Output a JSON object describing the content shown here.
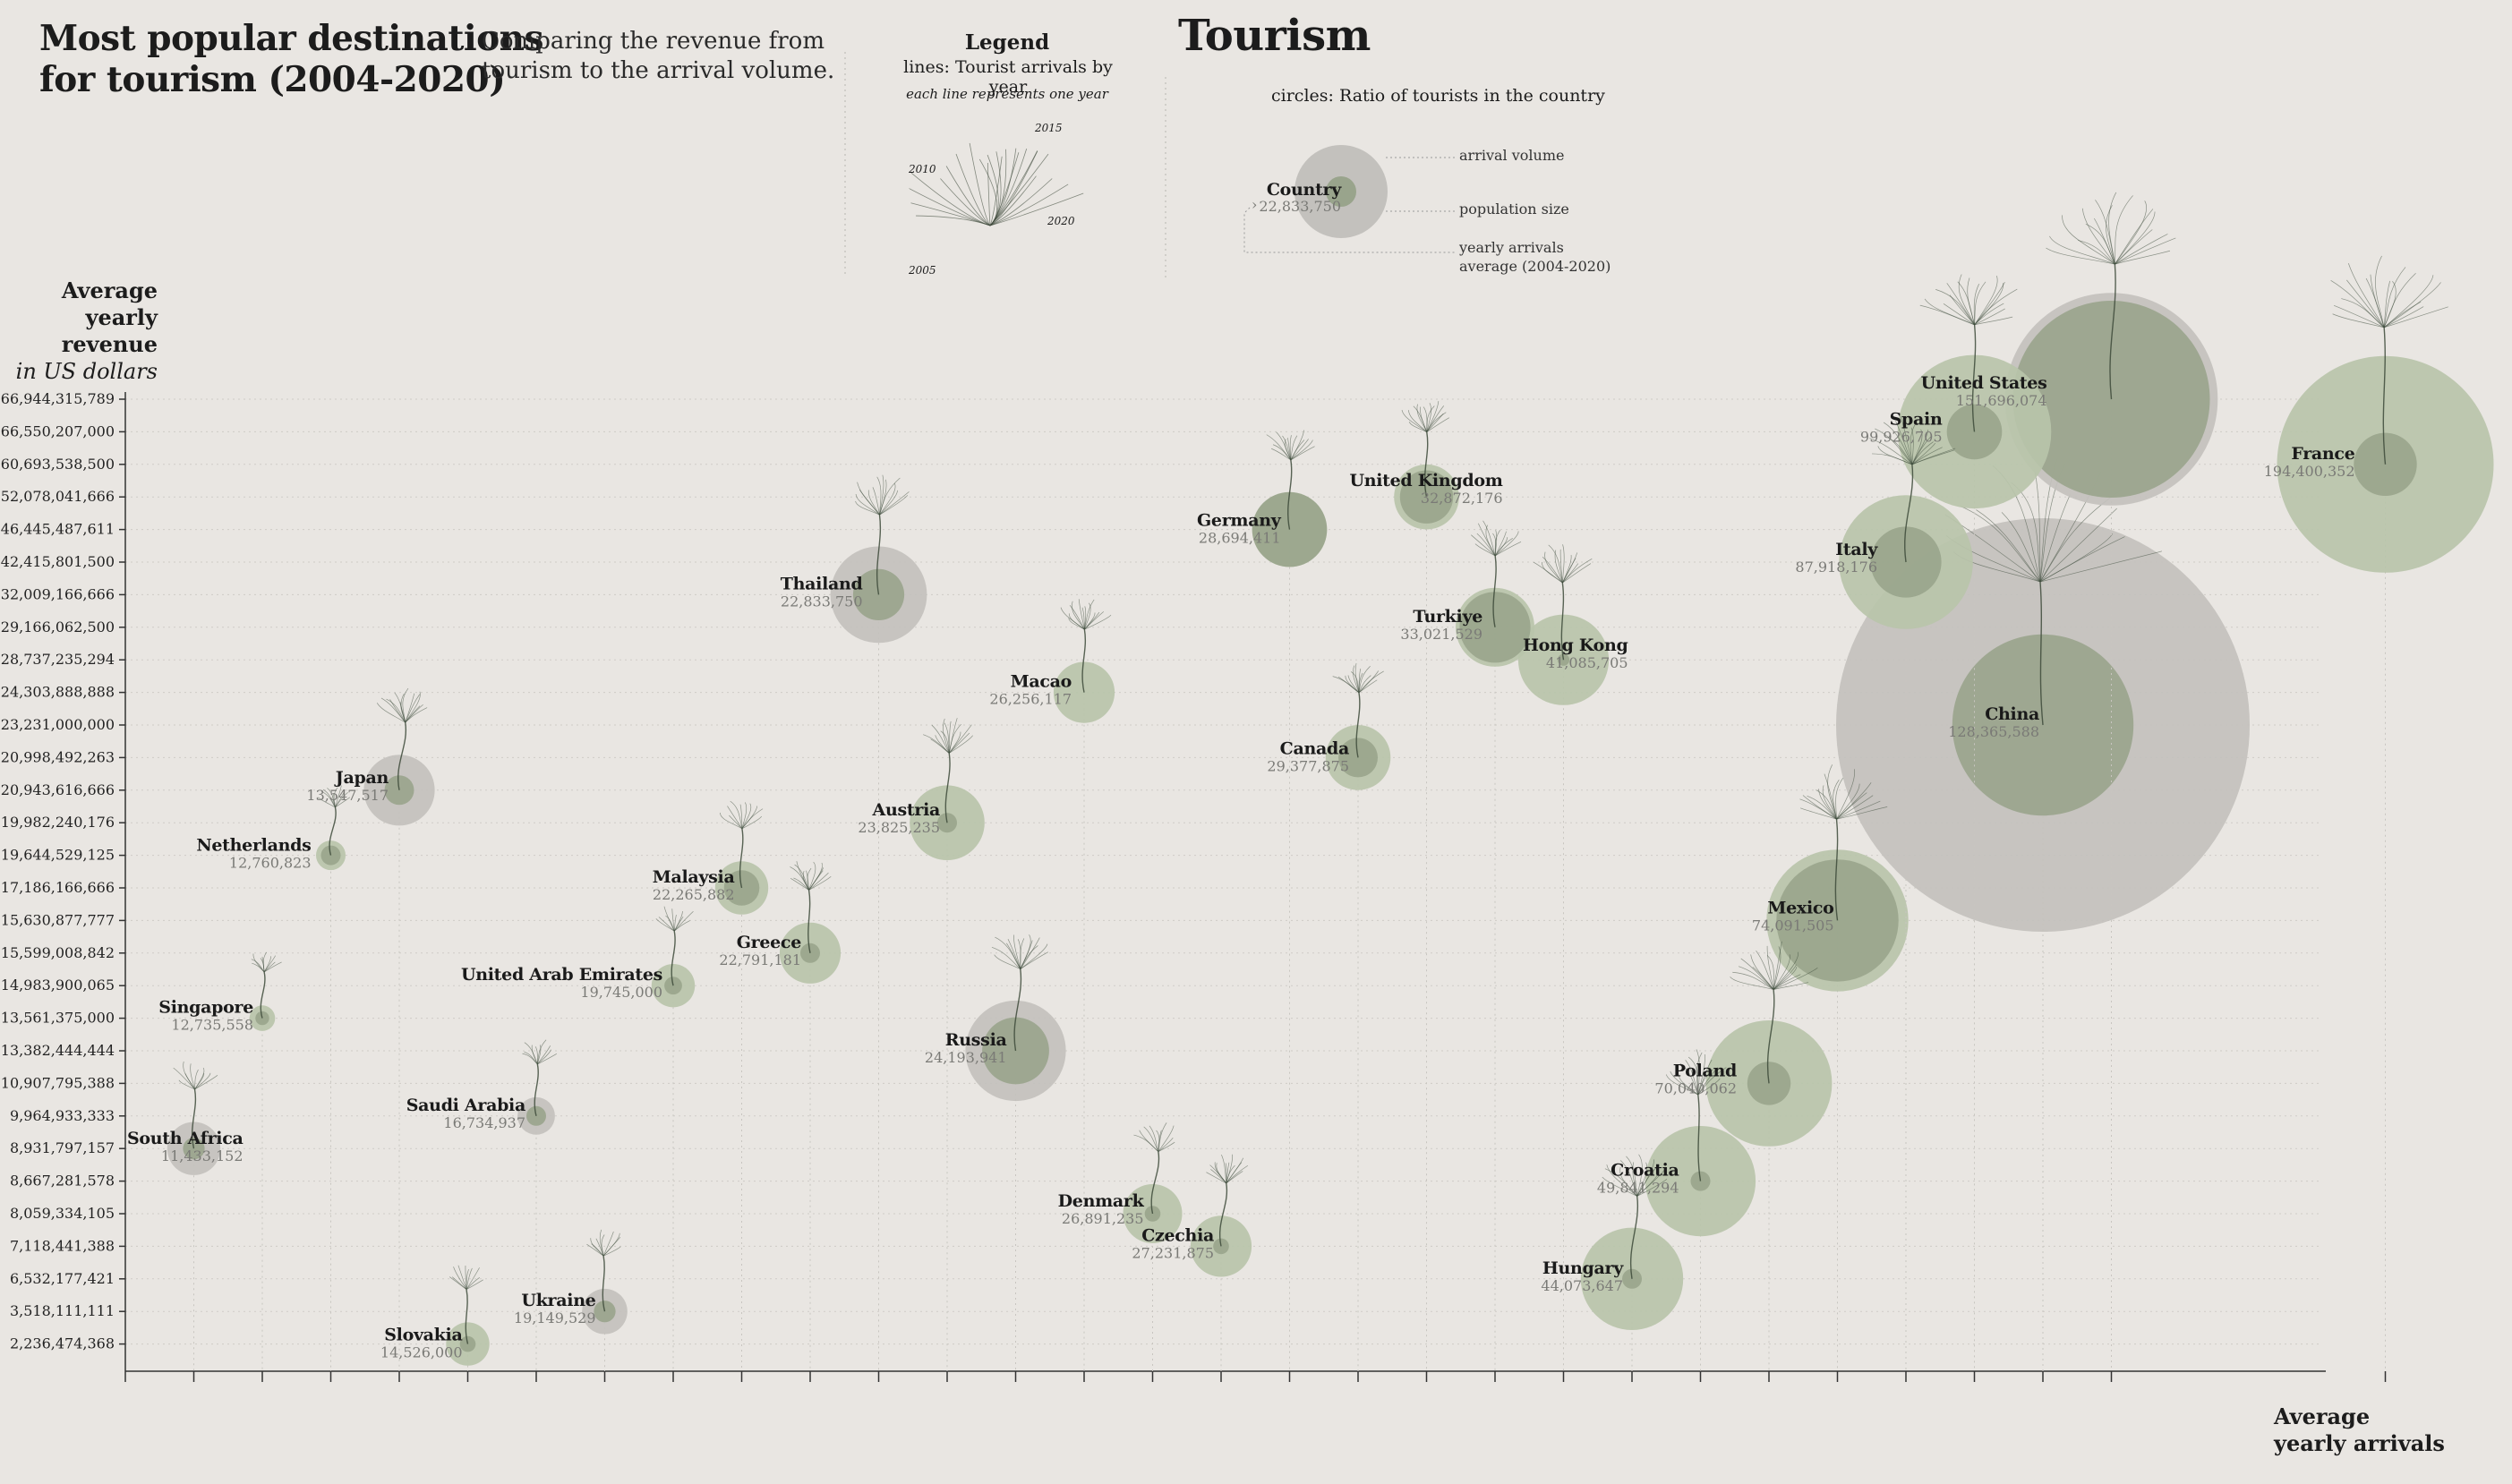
{
  "header": {
    "title_line1": "Most popular destinations",
    "title_line2": "for tourism (2004-2020)",
    "subtitle_line1": "Comparing the revenue from",
    "subtitle_line2": "tourism to the arrival volume.",
    "main_title": "Tourism"
  },
  "legend": {
    "heading": "Legend",
    "lines_text": "lines: Tourist arrivals by year",
    "lines_note": "each line represents one year",
    "year_labels": [
      "2015",
      "2010",
      "2020",
      "2005"
    ],
    "circles_text": "circles: Ratio of tourists in the country",
    "sample_country": "Country",
    "sample_value": "22,833,750",
    "arrival_volume": "arrival volume",
    "population_size": "population size",
    "yearly_arrivals_line1": "yearly arrivals",
    "yearly_arrivals_line2": "average (2004-2020)"
  },
  "colors": {
    "background": "#e9e6e2",
    "green_outer": "#b9c4aa",
    "green_inner": "#99a48c",
    "grey_outer": "#c3c1bd",
    "grey_inner": "#a9ae9f",
    "stem": "#3d4a3a"
  },
  "axes": {
    "y_title_line1": "Average",
    "y_title_line2": "yearly revenue",
    "y_title_line3": "in US dollars",
    "x_title_line1": "Average",
    "x_title_line2": "yearly arrivals"
  },
  "chart_data": {
    "type": "scatter",
    "title": "Tourism",
    "xlabel": "Average yearly arrivals",
    "ylabel": "Average yearly revenue in US dollars",
    "x_scale": "ordinal (countries sorted by average yearly arrivals)",
    "y_scale": "ordinal (countries sorted by average yearly revenue)",
    "y_ticks": [
      "166,944,315,789",
      "66,550,207,000",
      "60,693,538,500",
      "52,078,041,666",
      "46,445,487,611",
      "42,415,801,500",
      "32,009,166,666",
      "29,166,062,500",
      "28,737,235,294",
      "24,303,888,888",
      "23,231,000,000",
      "20,998,492,263",
      "20,943,616,666",
      "19,982,240,176",
      "19,644,529,125",
      "17,186,166,666",
      "15,630,877,777",
      "15,599,008,842",
      "14,983,900,065",
      "13,561,375,000",
      "13,382,444,444",
      "10,907,795,388",
      "9,964,933,333",
      "8,931,797,157",
      "8,667,281,578",
      "8,059,334,105",
      "7,118,441,388",
      "6,532,177,421",
      "3,518,111,111",
      "2,236,474,368"
    ],
    "points": [
      {
        "country": "South Africa",
        "arrivals": "11,433,152",
        "x_rank": 1,
        "revenue": "8,931,797,157",
        "tone": "grey",
        "outer": 1.35,
        "inner": 0.55
      },
      {
        "country": "Singapore",
        "arrivals": "12,735,558",
        "x_rank": 2,
        "revenue": "13,561,375,000",
        "tone": "green",
        "outer": 0.65,
        "inner": 0.35
      },
      {
        "country": "Netherlands",
        "arrivals": "12,760,823",
        "x_rank": 3,
        "revenue": "19,644,529,125",
        "tone": "green",
        "outer": 0.75,
        "inner": 0.5
      },
      {
        "country": "Japan",
        "arrivals": "13,547,517",
        "x_rank": 4,
        "revenue": "20,943,616,666",
        "tone": "grey",
        "outer": 1.8,
        "inner": 0.75
      },
      {
        "country": "Slovakia",
        "arrivals": "14,526,000",
        "x_rank": 5,
        "revenue": "2,236,474,368",
        "tone": "green",
        "outer": 1.1,
        "inner": 0.4
      },
      {
        "country": "Saudi Arabia",
        "arrivals": "16,734,937",
        "x_rank": 6,
        "revenue": "9,964,933,333",
        "tone": "grey",
        "outer": 0.95,
        "inner": 0.5
      },
      {
        "country": "Ukraine",
        "arrivals": "19,149,529",
        "x_rank": 7,
        "revenue": "3,518,111,111",
        "tone": "grey",
        "outer": 1.15,
        "inner": 0.55
      },
      {
        "country": "United Arab Emirates",
        "arrivals": "19,745,000",
        "x_rank": 8,
        "revenue": "14,983,900,065",
        "tone": "green",
        "outer": 1.1,
        "inner": 0.45
      },
      {
        "country": "Malaysia",
        "arrivals": "22,265,882",
        "x_rank": 9,
        "revenue": "17,186,166,666",
        "tone": "green",
        "outer": 1.35,
        "inner": 0.9
      },
      {
        "country": "Greece",
        "arrivals": "22,791,181",
        "x_rank": 10,
        "revenue": "15,599,008,842",
        "tone": "green",
        "outer": 1.55,
        "inner": 0.5
      },
      {
        "country": "Thailand",
        "arrivals": "22,833,750",
        "x_rank": 11,
        "revenue": "32,009,166,666",
        "tone": "grey",
        "outer": 2.45,
        "inner": 1.3
      },
      {
        "country": "Austria",
        "arrivals": "23,825,235",
        "x_rank": 12,
        "revenue": "19,982,240,176",
        "tone": "green",
        "outer": 1.9,
        "inner": 0.5
      },
      {
        "country": "Russia",
        "arrivals": "24,193,941",
        "x_rank": 13,
        "revenue": "13,382,444,444",
        "tone": "grey",
        "outer": 2.55,
        "inner": 1.7
      },
      {
        "country": "Macao",
        "arrivals": "26,256,117",
        "x_rank": 14,
        "revenue": "24,303,888,888",
        "tone": "green",
        "outer": 1.55,
        "inner": 0
      },
      {
        "country": "Denmark",
        "arrivals": "26,891,235",
        "x_rank": 15,
        "revenue": "8,059,334,105",
        "tone": "green",
        "outer": 1.5,
        "inner": 0.4
      },
      {
        "country": "Czechia",
        "arrivals": "27,231,875",
        "x_rank": 16,
        "revenue": "7,118,441,388",
        "tone": "green",
        "outer": 1.55,
        "inner": 0.4
      },
      {
        "country": "Germany",
        "arrivals": "28,694,411",
        "x_rank": 17,
        "revenue": "46,445,487,611",
        "tone": "green",
        "outer": 1.9,
        "inner": 1.9
      },
      {
        "country": "Canada",
        "arrivals": "29,377,875",
        "x_rank": 18,
        "revenue": "20,998,492,263",
        "tone": "green",
        "outer": 1.65,
        "inner": 1.0
      },
      {
        "country": "United Kingdom",
        "arrivals": "32,872,176",
        "x_rank": 19,
        "revenue": "52,078,041,666",
        "tone": "green",
        "outer": 1.65,
        "inner": 1.35
      },
      {
        "country": "Turkiye",
        "arrivals": "33,021,529",
        "x_rank": 20,
        "revenue": "29,166,062,500",
        "tone": "green",
        "outer": 2.0,
        "inner": 1.8
      },
      {
        "country": "Hong Kong",
        "arrivals": "41,085,705",
        "x_rank": 21,
        "revenue": "28,737,235,294",
        "tone": "green",
        "outer": 2.3,
        "inner": 0.3
      },
      {
        "country": "Hungary",
        "arrivals": "44,073,647",
        "x_rank": 22,
        "revenue": "6,532,177,421",
        "tone": "green",
        "outer": 2.6,
        "inner": 0.5
      },
      {
        "country": "Croatia",
        "arrivals": "49,841,294",
        "x_rank": 23,
        "revenue": "8,667,281,578",
        "tone": "green",
        "outer": 2.8,
        "inner": 0.5
      },
      {
        "country": "Poland",
        "arrivals": "70,040,062",
        "x_rank": 24,
        "revenue": "10,907,795,388",
        "tone": "green",
        "outer": 3.2,
        "inner": 1.1
      },
      {
        "country": "Mexico",
        "arrivals": "74,091,505",
        "x_rank": 25,
        "revenue": "15,630,877,777",
        "tone": "green",
        "outer": 3.6,
        "inner": 3.1
      },
      {
        "country": "Italy",
        "arrivals": "87,918,176",
        "x_rank": 26,
        "revenue": "42,415,801,500",
        "tone": "green",
        "outer": 3.4,
        "inner": 1.8
      },
      {
        "country": "Spain",
        "arrivals": "99,926,705",
        "x_rank": 27,
        "revenue": "66,550,207,000",
        "tone": "green",
        "outer": 3.9,
        "inner": 1.4
      },
      {
        "country": "China",
        "arrivals": "128,365,588",
        "x_rank": 28,
        "revenue": "23,231,000,000",
        "tone": "grey",
        "outer": 10.5,
        "inner": 4.6
      },
      {
        "country": "United States",
        "arrivals": "151,696,074",
        "x_rank": 29,
        "revenue": "166,944,315,789",
        "tone": "grey",
        "outer": 5.4,
        "inner": 5.0
      },
      {
        "country": "France",
        "arrivals": "194,400,352",
        "x_rank": 33,
        "revenue": "60,693,538,500",
        "tone": "green",
        "outer": 5.5,
        "inner": 1.6
      }
    ]
  }
}
